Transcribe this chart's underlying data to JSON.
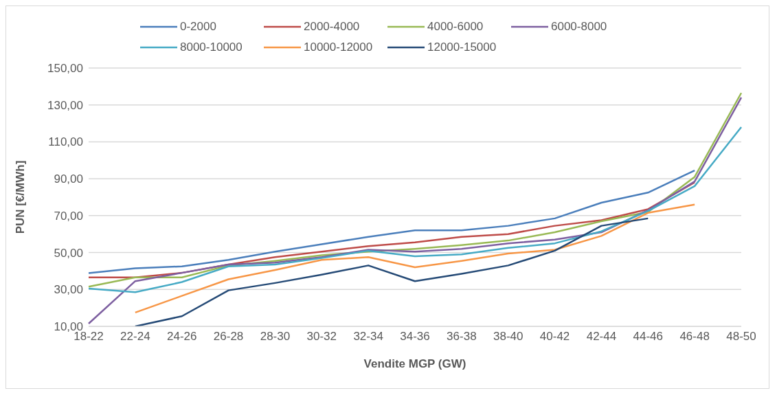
{
  "chart_data": {
    "type": "line",
    "xlabel": "Vendite MGP (GW)",
    "ylabel": "PUN [€/MWh]",
    "categories": [
      "18-22",
      "22-24",
      "24-26",
      "26-28",
      "28-30",
      "30-32",
      "32-34",
      "34-36",
      "36-38",
      "38-40",
      "40-42",
      "42-44",
      "44-46",
      "46-48",
      "48-50"
    ],
    "series": [
      {
        "name": "0-2000",
        "color": "#4a7ebb",
        "values": [
          38.9,
          41.5,
          42.5,
          46,
          50.5,
          54.5,
          58.5,
          62,
          62,
          64.5,
          68.5,
          77,
          82.5,
          94.5,
          null
        ]
      },
      {
        "name": "2000-4000",
        "color": "#be4b48",
        "values": [
          36.5,
          36.5,
          39,
          43.5,
          47.5,
          50.5,
          53.5,
          55.5,
          58.5,
          60,
          64.5,
          67.5,
          73.5,
          88,
          null
        ]
      },
      {
        "name": "4000-6000",
        "color": "#98b954",
        "values": [
          31.5,
          36.5,
          36.5,
          43,
          45.5,
          48.5,
          50.5,
          52,
          54,
          56.5,
          61,
          67,
          72,
          91,
          136.5
        ]
      },
      {
        "name": "6000-8000",
        "color": "#7d5fa0",
        "values": [
          11.5,
          34.5,
          39,
          43.5,
          44.5,
          47.5,
          51.5,
          50.5,
          52,
          55,
          57,
          61,
          73,
          88.5,
          134
        ]
      },
      {
        "name": "8000-10000",
        "color": "#46aac5",
        "values": [
          30.5,
          28.5,
          34,
          42.5,
          43.5,
          47,
          51,
          48,
          49,
          52.5,
          55,
          61.5,
          72.5,
          86,
          118
        ]
      },
      {
        "name": "10000-12000",
        "color": "#f79646",
        "values": [
          null,
          17.5,
          26.5,
          35.5,
          40.5,
          46,
          47.5,
          42,
          45.5,
          49.5,
          51.5,
          59,
          71.5,
          76,
          null
        ]
      },
      {
        "name": "12000-15000",
        "color": "#254a76",
        "values": [
          null,
          10,
          15.5,
          29.5,
          33.5,
          38,
          43,
          34.5,
          38.5,
          43,
          51,
          64.5,
          68.5,
          null,
          null
        ]
      }
    ],
    "ylim": [
      10,
      150
    ],
    "yticks": [
      {
        "value": 10,
        "label": "10,00"
      },
      {
        "value": 30,
        "label": "30,00"
      },
      {
        "value": 50,
        "label": "50,00"
      },
      {
        "value": 70,
        "label": "70,00"
      },
      {
        "value": 90,
        "label": "90,00"
      },
      {
        "value": 110,
        "label": "110,00"
      },
      {
        "value": 130,
        "label": "130,00"
      },
      {
        "value": 150,
        "label": "150,00"
      }
    ],
    "grid": "y",
    "legend": "top",
    "marker": "none",
    "line_style": "solid"
  }
}
